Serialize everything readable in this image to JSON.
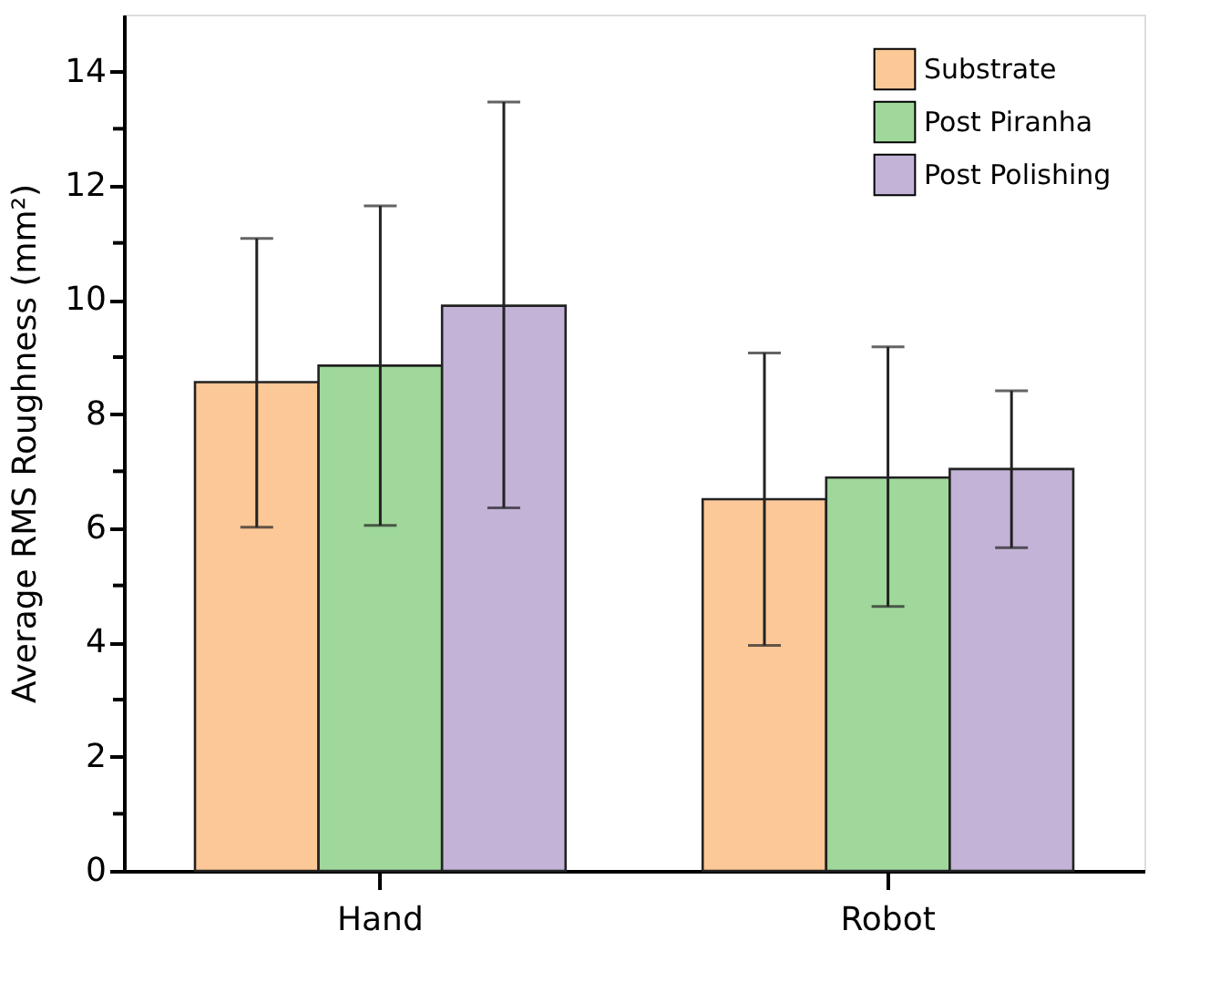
{
  "chart_data": {
    "type": "bar",
    "ylabel": "Average RMS Roughness (mm²)",
    "categories": [
      "Hand",
      "Robot"
    ],
    "series": [
      {
        "name": "Substrate",
        "color": "#fcc897",
        "values": [
          8.56,
          6.51
        ],
        "errors": [
          [
            6.02,
            11.08
          ],
          [
            3.95,
            9.07
          ]
        ]
      },
      {
        "name": "Post Piranha",
        "color": "#a0d89c",
        "values": [
          8.85,
          6.89
        ],
        "errors": [
          [
            6.05,
            11.65
          ],
          [
            4.63,
            9.18
          ]
        ]
      },
      {
        "name": "Post Polishing",
        "color": "#c3b3d7",
        "values": [
          9.9,
          7.04
        ],
        "errors": [
          [
            6.36,
            13.47
          ],
          [
            5.66,
            8.41
          ]
        ]
      }
    ],
    "ylim": [
      0,
      15
    ],
    "yticks": [
      0,
      {
        "value": 1,
        "label": null
      },
      2,
      {
        "value": 3,
        "label": null
      },
      4,
      {
        "value": 5,
        "label": null
      },
      6,
      {
        "value": 7,
        "label": null
      },
      8,
      {
        "value": 9,
        "label": null
      },
      10,
      {
        "value": 11,
        "label": null
      },
      12,
      {
        "value": 13,
        "label": null
      },
      14
    ],
    "grid": false,
    "legend": "top right"
  }
}
